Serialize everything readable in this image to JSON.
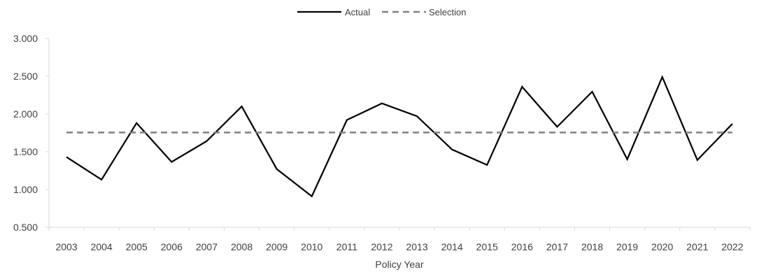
{
  "chart_data": {
    "type": "line",
    "xlabel": "Policy Year",
    "ylabel": "",
    "ylim": [
      0.5,
      3.0
    ],
    "yticks": [
      "0.500",
      "1.000",
      "1.500",
      "2.000",
      "2.500",
      "3.000"
    ],
    "grid": false,
    "legend_position": "top-center",
    "categories": [
      "2003",
      "2004",
      "2005",
      "2006",
      "2007",
      "2008",
      "2009",
      "2010",
      "2011",
      "2012",
      "2013",
      "2014",
      "2015",
      "2016",
      "2017",
      "2018",
      "2019",
      "2020",
      "2021",
      "2022"
    ],
    "series": [
      {
        "name": "Actual",
        "style": "solid",
        "color": "#000000",
        "values": [
          1.43,
          1.13,
          1.88,
          1.365,
          1.64,
          2.1,
          1.27,
          0.91,
          1.92,
          2.14,
          1.97,
          1.53,
          1.325,
          2.36,
          1.83,
          2.295,
          1.4,
          2.49,
          1.39,
          1.87
        ]
      },
      {
        "name": "Selection",
        "style": "dashed",
        "color": "#808080",
        "values": [
          1.755,
          1.755,
          1.755,
          1.755,
          1.755,
          1.755,
          1.755,
          1.755,
          1.755,
          1.755,
          1.755,
          1.755,
          1.755,
          1.755,
          1.755,
          1.755,
          1.755,
          1.755,
          1.755,
          1.755
        ]
      }
    ]
  }
}
